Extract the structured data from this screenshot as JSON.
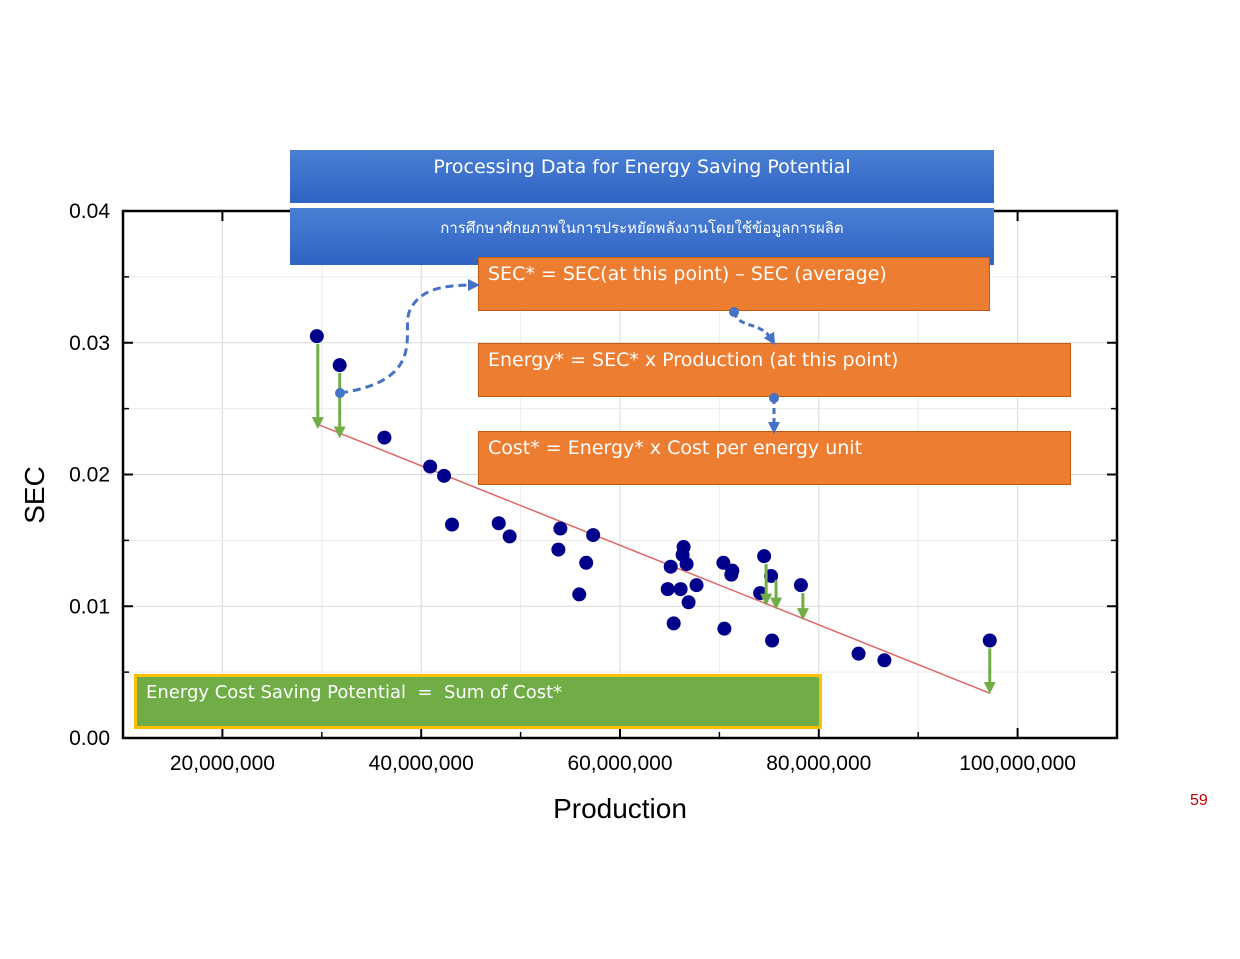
{
  "slide": {
    "title": "Processing Data for Energy Saving Potential",
    "subtitle": "การศึกษาศักยภาพในการประหยัดพลังงานโดยใช้ข้อมูลการผลิต",
    "formulas": {
      "sec": "SEC* = SEC(at this point) – SEC (average)",
      "energy": "Energy* = SEC* x Production (at this point)",
      "cost": "Cost* = Energy* x Cost per energy unit"
    },
    "saving_potential": "Energy Cost Saving Potential  =  Sum of Cost*",
    "page_number": "59",
    "colors": {
      "banner": "#2f63c4",
      "formula_box": "#ed7d31",
      "saving_box": "#70ad47",
      "saving_border": "#ffc000",
      "points": "#00008b",
      "trend_line": "#e06666",
      "deviation_arrows": "#70ad47",
      "flow_arrows": "#4472c4",
      "page_number": "#c00000"
    }
  },
  "chart_data": {
    "type": "scatter",
    "xlabel": "Production",
    "ylabel": "SEC",
    "xlim": [
      10000000,
      110000000
    ],
    "ylim": [
      0,
      0.04
    ],
    "xticks": [
      20000000,
      40000000,
      60000000,
      80000000,
      100000000
    ],
    "xtick_labels": [
      "20,000,000",
      "40,000,000",
      "60,000,000",
      "80,000,000",
      "100,000,000"
    ],
    "yticks": [
      0,
      0.01,
      0.02,
      0.03,
      0.04
    ],
    "ytick_labels": [
      "0.00",
      "0.01",
      "0.02",
      "0.03",
      "0.04"
    ],
    "grid": true,
    "points": [
      [
        29500000,
        0.0305
      ],
      [
        31800000,
        0.0283
      ],
      [
        36300000,
        0.0228
      ],
      [
        40900000,
        0.0206
      ],
      [
        42300000,
        0.0199
      ],
      [
        43100000,
        0.0162
      ],
      [
        47800000,
        0.0163
      ],
      [
        48900000,
        0.0153
      ],
      [
        53800000,
        0.0143
      ],
      [
        54000000,
        0.0159
      ],
      [
        55900000,
        0.0109
      ],
      [
        56600000,
        0.0133
      ],
      [
        57300000,
        0.0154
      ],
      [
        64800000,
        0.0113
      ],
      [
        65100000,
        0.013
      ],
      [
        65400000,
        0.0087
      ],
      [
        66100000,
        0.0113
      ],
      [
        66300000,
        0.0139
      ],
      [
        66400000,
        0.0145
      ],
      [
        66700000,
        0.0132
      ],
      [
        66900000,
        0.0103
      ],
      [
        67700000,
        0.0116
      ],
      [
        70400000,
        0.0133
      ],
      [
        70500000,
        0.0083
      ],
      [
        71200000,
        0.0124
      ],
      [
        71300000,
        0.0127
      ],
      [
        74100000,
        0.011
      ],
      [
        74500000,
        0.0138
      ],
      [
        75200000,
        0.0123
      ],
      [
        75300000,
        0.0074
      ],
      [
        78200000,
        0.0116
      ],
      [
        84000000,
        0.0064
      ],
      [
        86600000,
        0.0059
      ],
      [
        97200000,
        0.0074
      ]
    ],
    "trend_line": {
      "x": [
        29600000,
        97200000
      ],
      "y": [
        0.0238,
        0.0034
      ]
    },
    "deviation_arrows": [
      {
        "x": 29600000,
        "from": 0.0299,
        "to": 0.0239
      },
      {
        "x": 31800000,
        "from": 0.0277,
        "to": 0.0232
      },
      {
        "x": 74700000,
        "from": 0.0132,
        "to": 0.0105
      },
      {
        "x": 75700000,
        "from": 0.012,
        "to": 0.0102
      },
      {
        "x": 78400000,
        "from": 0.011,
        "to": 0.0094
      },
      {
        "x": 97200000,
        "from": 0.0068,
        "to": 0.0038
      }
    ]
  }
}
